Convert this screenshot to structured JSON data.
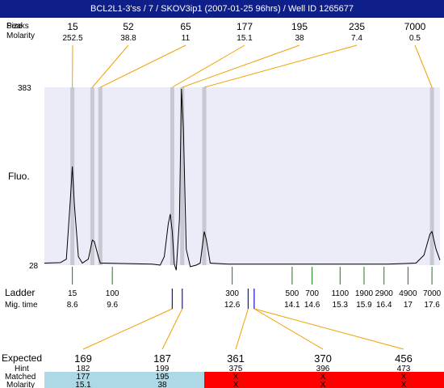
{
  "title": "BCL2L1-3'ss / 7 / SKOV3ip1 (2007-01-25 96hrs) / Well ID 1265677",
  "labels": {
    "peaks_row": "Peaks",
    "size_row": "Size",
    "molarity_row": "Molarity",
    "fluo": "Fluo.",
    "ladder": "Ladder",
    "mig_time": "Mig. time",
    "expected": "Expected",
    "hint": "Hint",
    "matched": "Matched",
    "molarity_bottom": "Molarity"
  },
  "colors": {
    "title_bg": "#0e1f8a",
    "plot_bg": "#ececf8",
    "marker_band": "#c8c8d2",
    "connector": "#f0a000",
    "ladder_tick": "#1a7a1a",
    "hint_tick": "#1010d0",
    "matched_cell": "#add8e6",
    "unmatched_cell": "#ff0000",
    "expected_matched_text": "#ff0000"
  },
  "chart_data": {
    "type": "line",
    "y_axis": {
      "top_label": "383",
      "bottom_label": "28",
      "range": [
        28,
        383
      ]
    },
    "x_axis_unit": "mig_time",
    "x_range": [
      7.9,
      17.8
    ],
    "peaks": [
      {
        "size": "15",
        "molarity": "252.5",
        "mig_time": 8.6
      },
      {
        "size": "52",
        "molarity": "38.8",
        "mig_time": 9.1
      },
      {
        "size": "65",
        "molarity": "11",
        "mig_time": 9.3
      },
      {
        "size": "177",
        "molarity": "15.1",
        "mig_time": 11.1
      },
      {
        "size": "195",
        "molarity": "38",
        "mig_time": 11.35
      },
      {
        "size": "235",
        "molarity": "7.4",
        "mig_time": 11.9
      },
      {
        "size": "7000",
        "molarity": "0.5",
        "mig_time": 17.6
      }
    ],
    "ladder": [
      {
        "size": "15",
        "mig_time": "8.6",
        "t": 8.6
      },
      {
        "size": "100",
        "mig_time": "9.6",
        "t": 9.6
      },
      {
        "size": "300",
        "mig_time": "12.6",
        "t": 12.6
      },
      {
        "size": "500",
        "mig_time": "14.1",
        "t": 14.1
      },
      {
        "size": "700",
        "mig_time": "14.6",
        "t": 14.6
      },
      {
        "size": "1100",
        "mig_time": "15.3",
        "t": 15.3
      },
      {
        "size": "1900",
        "mig_time": "15.9",
        "t": 15.9
      },
      {
        "size": "2900",
        "mig_time": "16.4",
        "t": 16.4
      },
      {
        "size": "4900",
        "mig_time": "17",
        "t": 17.0
      },
      {
        "size": "7000",
        "mig_time": "17.6",
        "t": 17.6
      }
    ],
    "hint_marks": [
      11.1,
      11.35,
      13.0,
      13.15
    ],
    "expected": [
      {
        "expected": "169",
        "hint": "182",
        "matched": "177",
        "molarity": "15.1",
        "is_matched": true,
        "hint_t": 11.1
      },
      {
        "expected": "187",
        "hint": "199",
        "matched": "195",
        "molarity": "38",
        "is_matched": true,
        "hint_t": 11.35
      },
      {
        "expected": "361",
        "hint": "375",
        "matched": "X",
        "molarity": "X",
        "is_matched": false,
        "hint_t": 13.0
      },
      {
        "expected": "370",
        "hint": "396",
        "matched": "X",
        "molarity": "X",
        "is_matched": false,
        "hint_t": 13.15
      },
      {
        "expected": "456",
        "hint": "473",
        "matched": "X",
        "molarity": "X",
        "is_matched": false,
        "hint_t": 13.15
      }
    ],
    "trace": [
      [
        7.9,
        32
      ],
      [
        8.3,
        33
      ],
      [
        8.45,
        40
      ],
      [
        8.55,
        160
      ],
      [
        8.6,
        225
      ],
      [
        8.65,
        150
      ],
      [
        8.75,
        45
      ],
      [
        8.85,
        32
      ],
      [
        9.0,
        40
      ],
      [
        9.1,
        78
      ],
      [
        9.15,
        75
      ],
      [
        9.25,
        45
      ],
      [
        9.3,
        32
      ],
      [
        10.6,
        30
      ],
      [
        10.8,
        28
      ],
      [
        10.9,
        45
      ],
      [
        11.0,
        110
      ],
      [
        11.05,
        130
      ],
      [
        11.1,
        95
      ],
      [
        11.15,
        30
      ],
      [
        11.2,
        18
      ],
      [
        11.28,
        120
      ],
      [
        11.33,
        380
      ],
      [
        11.38,
        300
      ],
      [
        11.45,
        60
      ],
      [
        11.55,
        25
      ],
      [
        11.7,
        28
      ],
      [
        11.8,
        32
      ],
      [
        11.9,
        95
      ],
      [
        11.95,
        80
      ],
      [
        12.05,
        32
      ],
      [
        12.5,
        30
      ],
      [
        16.5,
        30
      ],
      [
        17.2,
        32
      ],
      [
        17.4,
        48
      ],
      [
        17.55,
        90
      ],
      [
        17.6,
        95
      ],
      [
        17.7,
        60
      ],
      [
        17.8,
        38
      ]
    ]
  }
}
